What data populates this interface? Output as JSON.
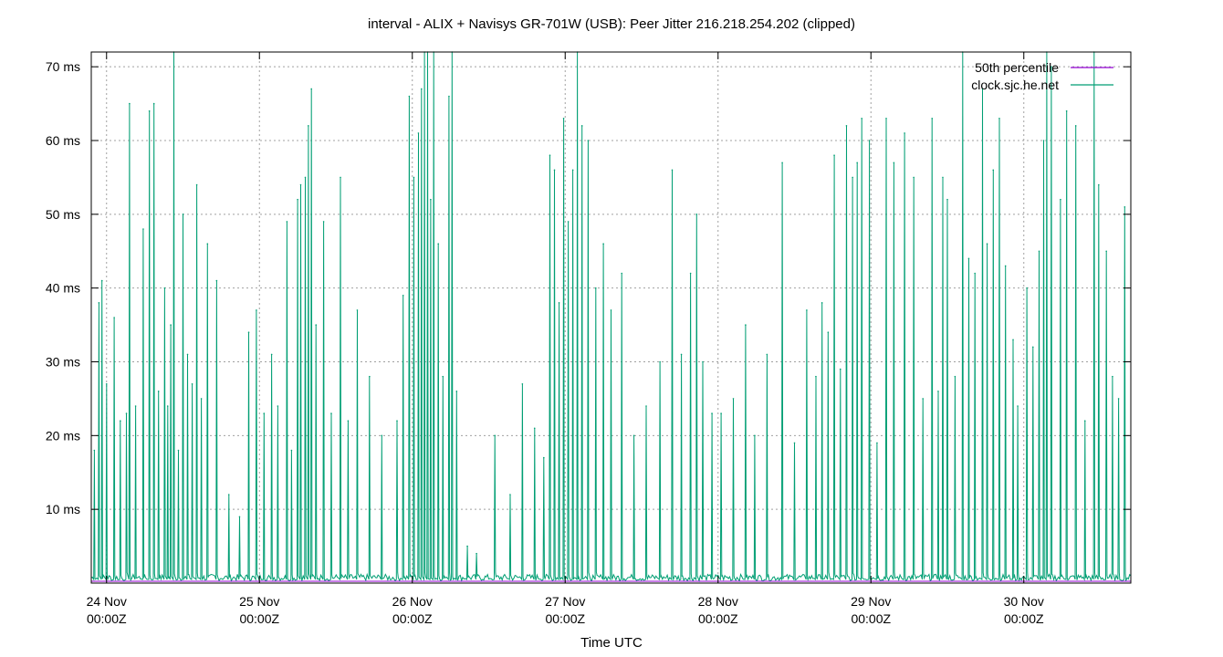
{
  "chart_data": {
    "type": "line",
    "title": "interval - ALIX + Navisys GR-701W (USB): Peer Jitter 216.218.254.202 (clipped)",
    "xlabel": "Time UTC",
    "ylabel": "",
    "x_range_days": [
      23.9,
      30.7
    ],
    "ylim": [
      0,
      72
    ],
    "y_ticks": [
      {
        "value": 10,
        "label": "10 ms"
      },
      {
        "value": 20,
        "label": "20 ms"
      },
      {
        "value": 30,
        "label": "30 ms"
      },
      {
        "value": 40,
        "label": "40 ms"
      },
      {
        "value": 50,
        "label": "50 ms"
      },
      {
        "value": 60,
        "label": "60 ms"
      },
      {
        "value": 70,
        "label": "70 ms"
      }
    ],
    "x_ticks": [
      {
        "day": 24,
        "line1": "24 Nov",
        "line2": "00:00Z"
      },
      {
        "day": 25,
        "line1": "25 Nov",
        "line2": "00:00Z"
      },
      {
        "day": 26,
        "line1": "26 Nov",
        "line2": "00:00Z"
      },
      {
        "day": 27,
        "line1": "27 Nov",
        "line2": "00:00Z"
      },
      {
        "day": 28,
        "line1": "28 Nov",
        "line2": "00:00Z"
      },
      {
        "day": 29,
        "line1": "29 Nov",
        "line2": "00:00Z"
      },
      {
        "day": 30,
        "line1": "30 Nov",
        "line2": "00:00Z"
      }
    ],
    "grid": true,
    "legend_position": "top-right",
    "series": [
      {
        "name": "50th percentile",
        "color": "#9400d3",
        "constant": 0.25
      },
      {
        "name": "clock.sjc.he.net",
        "color": "#009e73",
        "spikes": [
          [
            23.92,
            18
          ],
          [
            23.95,
            38
          ],
          [
            23.97,
            41
          ],
          [
            24.0,
            27
          ],
          [
            24.05,
            36
          ],
          [
            24.09,
            22
          ],
          [
            24.13,
            23
          ],
          [
            24.15,
            65
          ],
          [
            24.19,
            24
          ],
          [
            24.24,
            48
          ],
          [
            24.28,
            64
          ],
          [
            24.31,
            65
          ],
          [
            24.34,
            26
          ],
          [
            24.38,
            40
          ],
          [
            24.4,
            24
          ],
          [
            24.42,
            35
          ],
          [
            24.44,
            75
          ],
          [
            24.47,
            18
          ],
          [
            24.5,
            50
          ],
          [
            24.53,
            31
          ],
          [
            24.56,
            27
          ],
          [
            24.59,
            54
          ],
          [
            24.62,
            25
          ],
          [
            24.66,
            46
          ],
          [
            24.72,
            41
          ],
          [
            24.8,
            12
          ],
          [
            24.87,
            9
          ],
          [
            24.93,
            34
          ],
          [
            24.98,
            37
          ],
          [
            25.03,
            23
          ],
          [
            25.08,
            31
          ],
          [
            25.12,
            24
          ],
          [
            25.18,
            49
          ],
          [
            25.21,
            18
          ],
          [
            25.25,
            52
          ],
          [
            25.27,
            54
          ],
          [
            25.3,
            55
          ],
          [
            25.32,
            62
          ],
          [
            25.34,
            67
          ],
          [
            25.37,
            35
          ],
          [
            25.42,
            49
          ],
          [
            25.47,
            23
          ],
          [
            25.53,
            55
          ],
          [
            25.58,
            22
          ],
          [
            25.64,
            37
          ],
          [
            25.72,
            28
          ],
          [
            25.8,
            20
          ],
          [
            25.9,
            22
          ],
          [
            25.94,
            39
          ],
          [
            25.98,
            66
          ],
          [
            26.01,
            55
          ],
          [
            26.04,
            61
          ],
          [
            26.06,
            67
          ],
          [
            26.08,
            72
          ],
          [
            26.1,
            75
          ],
          [
            26.12,
            52
          ],
          [
            26.14,
            72
          ],
          [
            26.17,
            46
          ],
          [
            26.2,
            28
          ],
          [
            26.24,
            66
          ],
          [
            26.26,
            75
          ],
          [
            26.29,
            26
          ],
          [
            26.36,
            5
          ],
          [
            26.42,
            4
          ],
          [
            26.54,
            20
          ],
          [
            26.64,
            12
          ],
          [
            26.72,
            27
          ],
          [
            26.8,
            21
          ],
          [
            26.86,
            17
          ],
          [
            26.9,
            58
          ],
          [
            26.93,
            56
          ],
          [
            26.96,
            38
          ],
          [
            26.99,
            63
          ],
          [
            27.02,
            49
          ],
          [
            27.05,
            56
          ],
          [
            27.08,
            75
          ],
          [
            27.11,
            62
          ],
          [
            27.15,
            60
          ],
          [
            27.2,
            40
          ],
          [
            27.25,
            46
          ],
          [
            27.3,
            37
          ],
          [
            27.37,
            42
          ],
          [
            27.45,
            20
          ],
          [
            27.53,
            24
          ],
          [
            27.62,
            30
          ],
          [
            27.7,
            56
          ],
          [
            27.76,
            31
          ],
          [
            27.82,
            42
          ],
          [
            27.86,
            50
          ],
          [
            27.9,
            30
          ],
          [
            27.96,
            23
          ],
          [
            28.02,
            23
          ],
          [
            28.1,
            25
          ],
          [
            28.18,
            35
          ],
          [
            28.24,
            20
          ],
          [
            28.32,
            31
          ],
          [
            28.42,
            57
          ],
          [
            28.5,
            19
          ],
          [
            28.58,
            37
          ],
          [
            28.64,
            28
          ],
          [
            28.68,
            38
          ],
          [
            28.72,
            34
          ],
          [
            28.76,
            58
          ],
          [
            28.8,
            29
          ],
          [
            28.84,
            62
          ],
          [
            28.88,
            55
          ],
          [
            28.91,
            57
          ],
          [
            28.94,
            63
          ],
          [
            28.99,
            60
          ],
          [
            29.04,
            19
          ],
          [
            29.1,
            63
          ],
          [
            29.15,
            57
          ],
          [
            29.22,
            61
          ],
          [
            29.28,
            55
          ],
          [
            29.34,
            25
          ],
          [
            29.4,
            63
          ],
          [
            29.44,
            26
          ],
          [
            29.47,
            55
          ],
          [
            29.5,
            52
          ],
          [
            29.55,
            28
          ],
          [
            29.6,
            76
          ],
          [
            29.64,
            44
          ],
          [
            29.68,
            42
          ],
          [
            29.73,
            67
          ],
          [
            29.76,
            46
          ],
          [
            29.8,
            56
          ],
          [
            29.84,
            63
          ],
          [
            29.88,
            43
          ],
          [
            29.93,
            33
          ],
          [
            29.96,
            24
          ],
          [
            30.02,
            40
          ],
          [
            30.06,
            32
          ],
          [
            30.1,
            45
          ],
          [
            30.13,
            60
          ],
          [
            30.15,
            75
          ],
          [
            30.18,
            70
          ],
          [
            30.24,
            52
          ],
          [
            30.28,
            64
          ],
          [
            30.34,
            62
          ],
          [
            30.4,
            22
          ],
          [
            30.46,
            73
          ],
          [
            30.49,
            54
          ],
          [
            30.54,
            45
          ],
          [
            30.58,
            28
          ],
          [
            30.62,
            25
          ],
          [
            30.66,
            51
          ]
        ]
      }
    ]
  }
}
